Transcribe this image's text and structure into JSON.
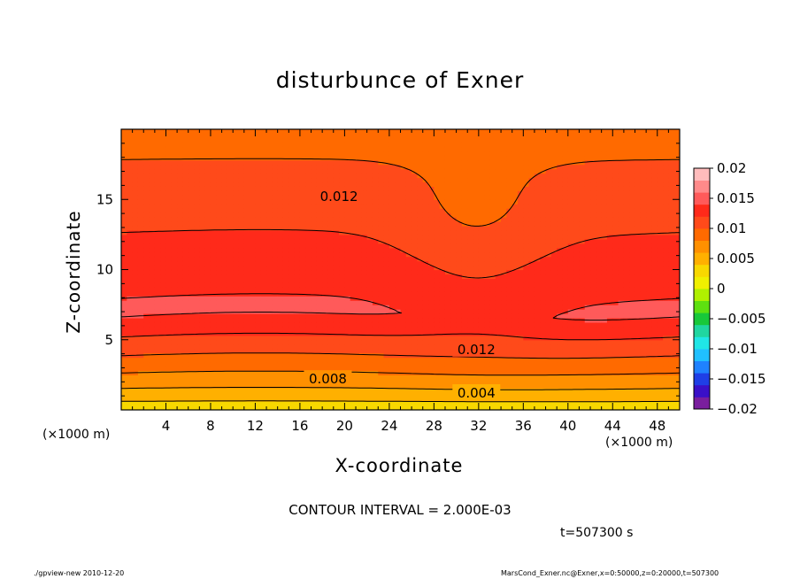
{
  "chart_data": {
    "type": "heatmap",
    "title": "disturbunce of Exner",
    "xlabel": "X-coordinate",
    "ylabel": "Z-coordinate",
    "x_unit": "(×1000 m)",
    "xlim": [
      0,
      50
    ],
    "ylim": [
      0,
      20
    ],
    "x_ticks": [
      4,
      8,
      12,
      16,
      20,
      24,
      28,
      32,
      36,
      40,
      44,
      48
    ],
    "y_ticks": [
      5,
      10,
      15
    ],
    "colorbar": {
      "range": [
        -0.02,
        0.02
      ],
      "tick_values": [
        0.02,
        0.015,
        0.01,
        0.005,
        0,
        -0.005,
        -0.01,
        -0.015,
        -0.02
      ],
      "tick_labels": [
        "0.02",
        "0.015",
        "0.01",
        "0.005",
        "0",
        "−0.005",
        "−0.01",
        "−0.015",
        "−0.02"
      ],
      "colors": [
        "#7a1e9e",
        "#3a10c8",
        "#1f3fe6",
        "#1f82ff",
        "#20c0ff",
        "#20e6e6",
        "#20d6a0",
        "#18c83a",
        "#5ee010",
        "#b0f000",
        "#f0f000",
        "#f8d800",
        "#ffb000",
        "#ff9000",
        "#ff6a00",
        "#ff4a1a",
        "#ff2a1a",
        "#ff5a5a",
        "#ff8a8a",
        "#ffbcbc"
      ]
    },
    "contour_interval": 0.002,
    "contour_labels": [
      {
        "text": "0.012",
        "x": 19.5,
        "z": 15.2
      },
      {
        "text": "0.012",
        "x": 31.8,
        "z": 4.3
      },
      {
        "text": "0.008",
        "x": 18.5,
        "z": 2.2
      },
      {
        "text": "0.004",
        "x": 31.8,
        "z": 1.2
      }
    ],
    "description_points": {
      "max_region_value": 0.014,
      "surface_value": 0.002,
      "top_value": 0.009
    }
  },
  "labels": {
    "contour_interval_text": "CONTOUR INTERVAL = 2.000E-03",
    "time_text": "t=507300 s",
    "footer_left": "./gpview-new  2010-12-20",
    "footer_right": "MarsCond_Exner.nc@Exner,x=0:50000,z=0:20000,t=507300"
  }
}
